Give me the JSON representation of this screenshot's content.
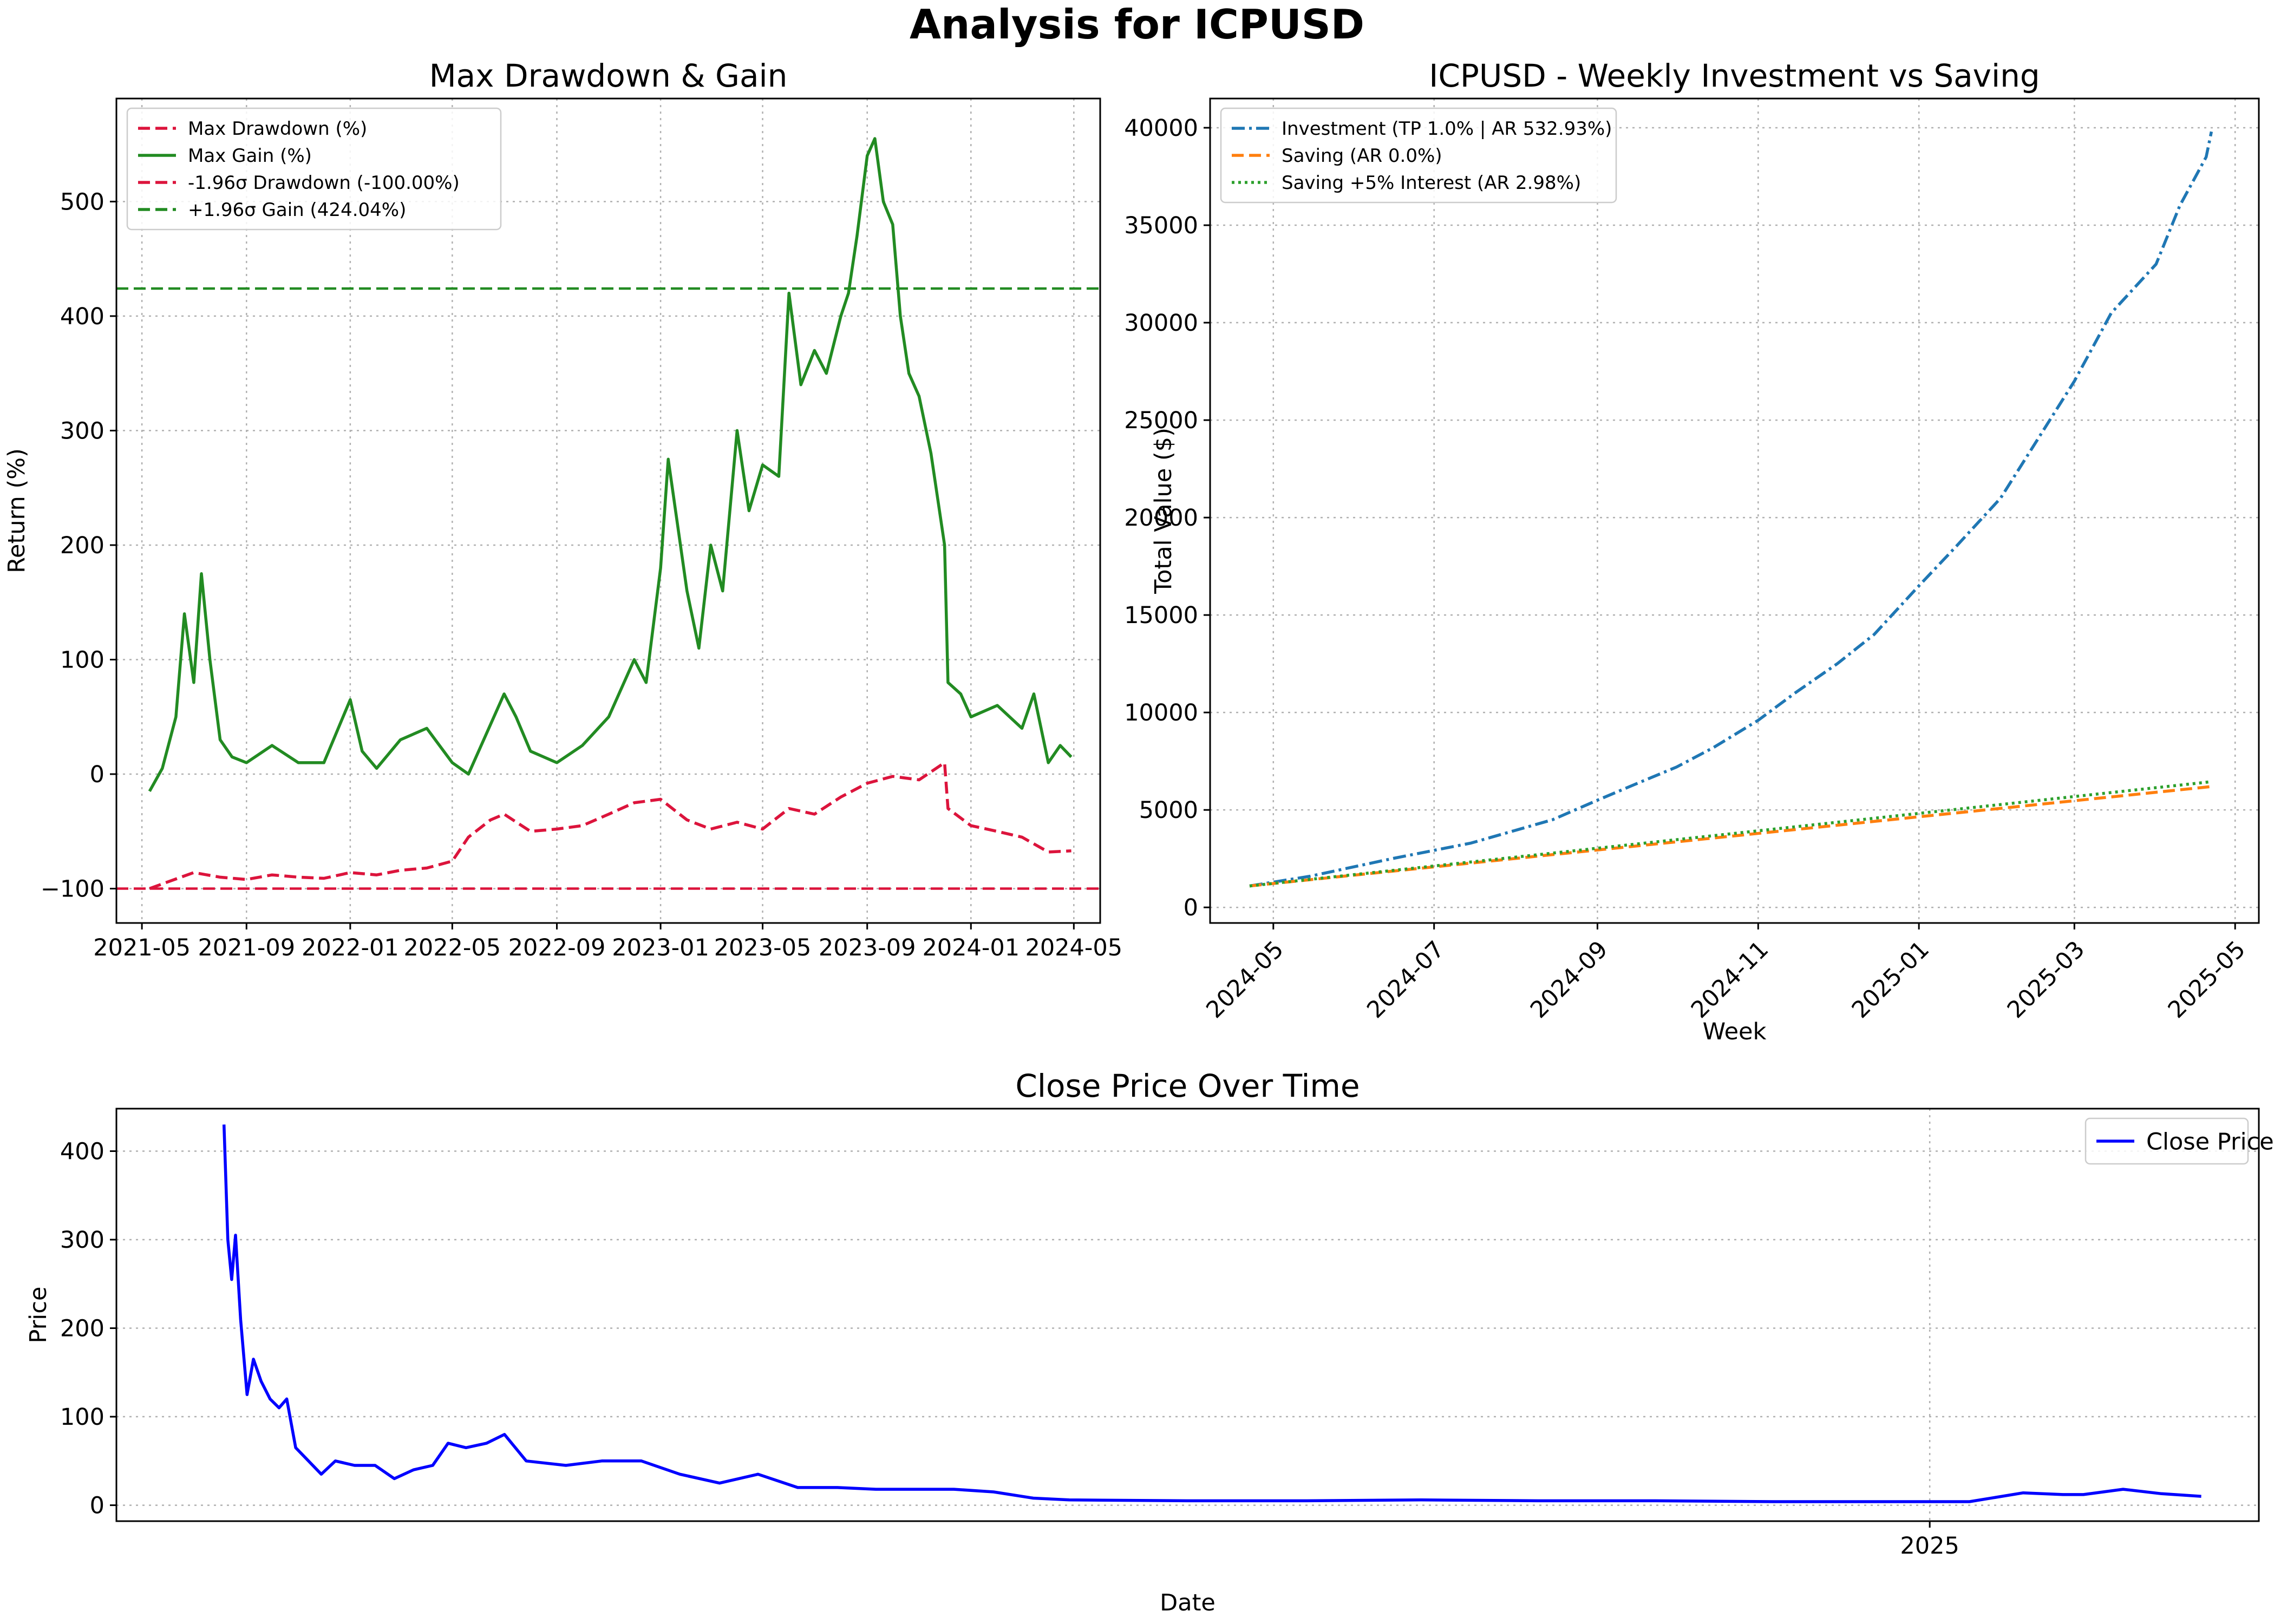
{
  "figure_title": "Analysis for ICPUSD",
  "chart_data": [
    {
      "id": "drawdown",
      "type": "line",
      "title": "Max Drawdown & Gain",
      "xlabel": "",
      "ylabel": "Return (%)",
      "xlim": [
        "2021-04-01",
        "2024-06-01"
      ],
      "ylim": [
        -130,
        590
      ],
      "xticks": [
        "2021-05",
        "2021-09",
        "2022-01",
        "2022-05",
        "2022-09",
        "2023-01",
        "2023-05",
        "2023-09",
        "2024-01",
        "2024-05"
      ],
      "yticks": [
        -100,
        0,
        100,
        200,
        300,
        400,
        500
      ],
      "grid": true,
      "legend_position": "top-left",
      "hlines": [
        {
          "name": "-1.96σ Drawdown (-100.00%)",
          "y": -100,
          "color": "#dc143c",
          "style": "dashed"
        },
        {
          "name": "+1.96σ Gain (424.04%)",
          "y": 424.04,
          "color": "#228b22",
          "style": "dashed"
        }
      ],
      "series": [
        {
          "name": "Max Drawdown (%)",
          "color": "#dc143c",
          "style": "dashed",
          "points": [
            [
              "2021-05-10",
              -100
            ],
            [
              "2021-06-01",
              -94
            ],
            [
              "2021-07-01",
              -86
            ],
            [
              "2021-08-01",
              -90
            ],
            [
              "2021-09-01",
              -92
            ],
            [
              "2021-10-01",
              -88
            ],
            [
              "2021-11-01",
              -90
            ],
            [
              "2021-12-01",
              -91
            ],
            [
              "2022-01-01",
              -86
            ],
            [
              "2022-02-01",
              -88
            ],
            [
              "2022-03-01",
              -84
            ],
            [
              "2022-04-01",
              -82
            ],
            [
              "2022-05-01",
              -76
            ],
            [
              "2022-05-20",
              -55
            ],
            [
              "2022-06-15",
              -40
            ],
            [
              "2022-07-01",
              -35
            ],
            [
              "2022-08-01",
              -50
            ],
            [
              "2022-09-01",
              -48
            ],
            [
              "2022-10-01",
              -45
            ],
            [
              "2022-11-01",
              -35
            ],
            [
              "2022-12-01",
              -25
            ],
            [
              "2023-01-01",
              -22
            ],
            [
              "2023-02-01",
              -40
            ],
            [
              "2023-03-01",
              -48
            ],
            [
              "2023-04-01",
              -42
            ],
            [
              "2023-05-01",
              -48
            ],
            [
              "2023-06-01",
              -30
            ],
            [
              "2023-07-01",
              -35
            ],
            [
              "2023-08-01",
              -20
            ],
            [
              "2023-09-01",
              -8
            ],
            [
              "2023-10-01",
              -2
            ],
            [
              "2023-11-01",
              -5
            ],
            [
              "2023-12-01",
              10
            ],
            [
              "2023-12-05",
              -30
            ],
            [
              "2024-01-01",
              -45
            ],
            [
              "2024-02-01",
              -50
            ],
            [
              "2024-03-01",
              -55
            ],
            [
              "2024-04-01",
              -68
            ],
            [
              "2024-04-28",
              -67
            ]
          ]
        },
        {
          "name": "Max Gain (%)",
          "color": "#228b22",
          "style": "solid",
          "points": [
            [
              "2021-05-10",
              -15
            ],
            [
              "2021-05-25",
              5
            ],
            [
              "2021-06-10",
              50
            ],
            [
              "2021-06-20",
              140
            ],
            [
              "2021-07-01",
              80
            ],
            [
              "2021-07-10",
              175
            ],
            [
              "2021-07-20",
              100
            ],
            [
              "2021-08-01",
              30
            ],
            [
              "2021-08-15",
              15
            ],
            [
              "2021-09-01",
              10
            ],
            [
              "2021-10-01",
              25
            ],
            [
              "2021-11-01",
              10
            ],
            [
              "2021-12-01",
              10
            ],
            [
              "2022-01-01",
              65
            ],
            [
              "2022-01-15",
              20
            ],
            [
              "2022-02-01",
              5
            ],
            [
              "2022-03-01",
              30
            ],
            [
              "2022-04-01",
              40
            ],
            [
              "2022-05-01",
              10
            ],
            [
              "2022-05-20",
              0
            ],
            [
              "2022-06-01",
              20
            ],
            [
              "2022-07-01",
              70
            ],
            [
              "2022-07-15",
              50
            ],
            [
              "2022-08-01",
              20
            ],
            [
              "2022-09-01",
              10
            ],
            [
              "2022-10-01",
              25
            ],
            [
              "2022-11-01",
              50
            ],
            [
              "2022-12-01",
              100
            ],
            [
              "2022-12-15",
              80
            ],
            [
              "2023-01-01",
              180
            ],
            [
              "2023-01-10",
              275
            ],
            [
              "2023-02-01",
              160
            ],
            [
              "2023-02-15",
              110
            ],
            [
              "2023-03-01",
              200
            ],
            [
              "2023-03-15",
              160
            ],
            [
              "2023-04-01",
              300
            ],
            [
              "2023-04-15",
              230
            ],
            [
              "2023-05-01",
              270
            ],
            [
              "2023-05-20",
              260
            ],
            [
              "2023-06-01",
              420
            ],
            [
              "2023-06-15",
              340
            ],
            [
              "2023-07-01",
              370
            ],
            [
              "2023-07-15",
              350
            ],
            [
              "2023-08-01",
              400
            ],
            [
              "2023-08-10",
              420
            ],
            [
              "2023-08-20",
              470
            ],
            [
              "2023-09-01",
              540
            ],
            [
              "2023-09-10",
              555
            ],
            [
              "2023-09-20",
              500
            ],
            [
              "2023-10-01",
              480
            ],
            [
              "2023-10-10",
              400
            ],
            [
              "2023-10-20",
              350
            ],
            [
              "2023-11-01",
              330
            ],
            [
              "2023-11-15",
              280
            ],
            [
              "2023-12-01",
              200
            ],
            [
              "2023-12-05",
              80
            ],
            [
              "2023-12-20",
              70
            ],
            [
              "2024-01-01",
              50
            ],
            [
              "2024-02-01",
              60
            ],
            [
              "2024-03-01",
              40
            ],
            [
              "2024-03-15",
              70
            ],
            [
              "2024-04-01",
              10
            ],
            [
              "2024-04-15",
              25
            ],
            [
              "2024-04-28",
              15
            ]
          ]
        }
      ]
    },
    {
      "id": "invest",
      "type": "line",
      "title": "ICPUSD - Weekly Investment vs Saving",
      "xlabel": "Week",
      "ylabel": "Total Value ($)",
      "xlim": [
        "2024-04-07",
        "2025-05-10"
      ],
      "ylim": [
        -800,
        41500
      ],
      "xticks": [
        "2024-05",
        "2024-07",
        "2024-09",
        "2024-11",
        "2025-01",
        "2025-03",
        "2025-05"
      ],
      "yticks": [
        0,
        5000,
        10000,
        15000,
        20000,
        25000,
        30000,
        35000,
        40000
      ],
      "grid": true,
      "legend_position": "top-left",
      "series": [
        {
          "name": "Investment (TP 1.0% | AR 532.93%)",
          "color": "#1f77b4",
          "style": "dashdot",
          "points": [
            [
              "2024-04-22",
              1100
            ],
            [
              "2024-05-15",
              1600
            ],
            [
              "2024-06-15",
              2500
            ],
            [
              "2024-07-15",
              3300
            ],
            [
              "2024-08-15",
              4500
            ],
            [
              "2024-09-01",
              5500
            ],
            [
              "2024-09-15",
              6300
            ],
            [
              "2024-10-01",
              7200
            ],
            [
              "2024-10-15",
              8200
            ],
            [
              "2024-11-01",
              9600
            ],
            [
              "2024-11-15",
              11000
            ],
            [
              "2024-12-01",
              12500
            ],
            [
              "2024-12-15",
              14000
            ],
            [
              "2025-01-01",
              16500
            ],
            [
              "2025-01-15",
              18500
            ],
            [
              "2025-02-01",
              21000
            ],
            [
              "2025-02-15",
              24000
            ],
            [
              "2025-03-01",
              27000
            ],
            [
              "2025-03-15",
              30500
            ],
            [
              "2025-04-01",
              33000
            ],
            [
              "2025-04-10",
              36000
            ],
            [
              "2025-04-20",
              38500
            ],
            [
              "2025-04-22",
              39800
            ]
          ]
        },
        {
          "name": "Saving (AR 0.0%)",
          "color": "#ff7f0e",
          "style": "dashed",
          "points": [
            [
              "2024-04-22",
              1100
            ],
            [
              "2025-04-22",
              6200
            ]
          ]
        },
        {
          "name": "Saving +5% Interest (AR 2.98%)",
          "color": "#2ca02c",
          "style": "dotted",
          "points": [
            [
              "2024-04-22",
              1100
            ],
            [
              "2025-04-22",
              6450
            ]
          ]
        }
      ]
    },
    {
      "id": "price",
      "type": "line",
      "title": "Close Price Over Time",
      "xlabel": "Date",
      "ylabel": "Price",
      "xlim": [
        "2021-02-15",
        "2025-09-15"
      ],
      "ylim": [
        -18,
        448
      ],
      "xticks": [
        "2025"
      ],
      "yticks": [
        0,
        100,
        200,
        300,
        400
      ],
      "grid": true,
      "legend_position": "top-right",
      "series": [
        {
          "name": "Close Price",
          "color": "#0000ff",
          "style": "solid",
          "points": [
            [
              "2021-05-10",
              430
            ],
            [
              "2021-05-13",
              300
            ],
            [
              "2021-05-16",
              255
            ],
            [
              "2021-05-19",
              305
            ],
            [
              "2021-05-23",
              210
            ],
            [
              "2021-05-28",
              125
            ],
            [
              "2021-06-02",
              165
            ],
            [
              "2021-06-08",
              140
            ],
            [
              "2021-06-15",
              120
            ],
            [
              "2021-06-22",
              110
            ],
            [
              "2021-06-28",
              120
            ],
            [
              "2021-07-05",
              65
            ],
            [
              "2021-07-15",
              50
            ],
            [
              "2021-07-25",
              35
            ],
            [
              "2021-08-05",
              50
            ],
            [
              "2021-08-20",
              45
            ],
            [
              "2021-09-05",
              45
            ],
            [
              "2021-09-20",
              30
            ],
            [
              "2021-10-05",
              40
            ],
            [
              "2021-10-20",
              45
            ],
            [
              "2021-11-01",
              70
            ],
            [
              "2021-11-15",
              65
            ],
            [
              "2021-12-01",
              70
            ],
            [
              "2021-12-15",
              80
            ],
            [
              "2022-01-01",
              50
            ],
            [
              "2022-02-01",
              45
            ],
            [
              "2022-03-01",
              50
            ],
            [
              "2022-04-01",
              50
            ],
            [
              "2022-05-01",
              35
            ],
            [
              "2022-06-01",
              25
            ],
            [
              "2022-07-01",
              35
            ],
            [
              "2022-08-01",
              20
            ],
            [
              "2022-09-01",
              20
            ],
            [
              "2022-10-01",
              18
            ],
            [
              "2022-11-01",
              18
            ],
            [
              "2022-12-01",
              18
            ],
            [
              "2023-01-01",
              15
            ],
            [
              "2023-02-01",
              8
            ],
            [
              "2023-03-01",
              6
            ],
            [
              "2023-06-01",
              5
            ],
            [
              "2023-09-01",
              5
            ],
            [
              "2023-12-01",
              6
            ],
            [
              "2024-03-01",
              5
            ],
            [
              "2024-06-01",
              5
            ],
            [
              "2024-09-01",
              4
            ],
            [
              "2024-12-01",
              4
            ],
            [
              "2025-01-01",
              4
            ],
            [
              "2025-02-01",
              4
            ],
            [
              "2025-03-15",
              14
            ],
            [
              "2025-04-15",
              12
            ],
            [
              "2025-05-01",
              12
            ],
            [
              "2025-06-01",
              18
            ],
            [
              "2025-07-01",
              13
            ],
            [
              "2025-08-01",
              10
            ]
          ]
        }
      ]
    }
  ]
}
